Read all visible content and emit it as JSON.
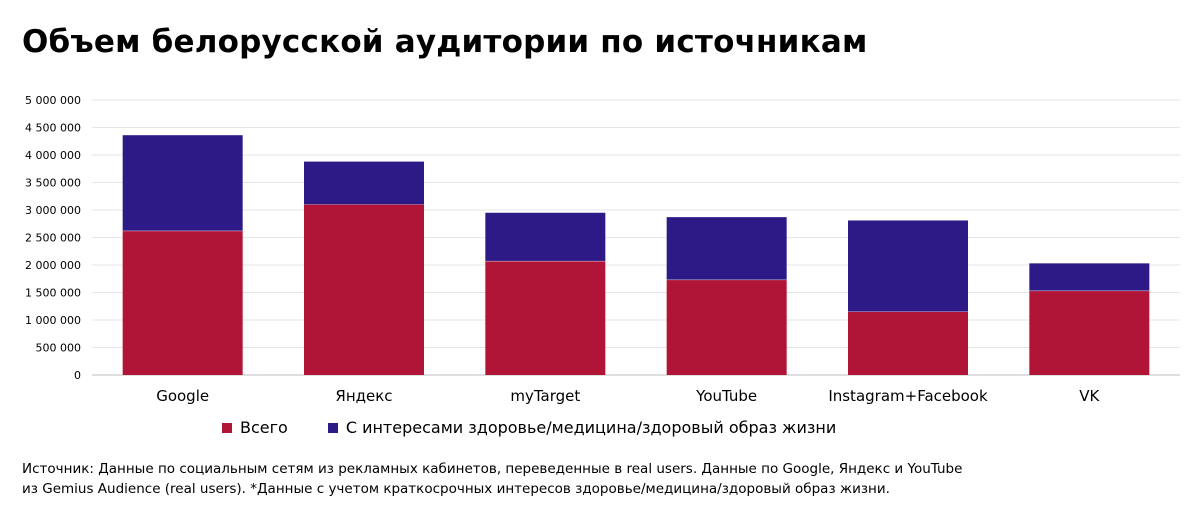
{
  "chart_data": {
    "type": "bar",
    "stacked": true,
    "title": "Объем белорусской аудитории по источникам",
    "categories": [
      "Google",
      "Яндекс",
      "myTarget",
      "YouTube",
      "Instagram+Facebook",
      "VK"
    ],
    "series": [
      {
        "name": "Всего",
        "color": "#b01437",
        "values": [
          2620000,
          3100000,
          2070000,
          1730000,
          1150000,
          1530000
        ]
      },
      {
        "name": "С интересами здоровье/медицина/здоровый образ жизни",
        "color": "#2e1a87",
        "values": [
          1740000,
          780000,
          880000,
          1140000,
          1660000,
          500000
        ]
      }
    ],
    "ylim": [
      0,
      5000000
    ],
    "yticks": [
      "0",
      "500 000",
      "1 000 000",
      "1 500 000",
      "2 000 000",
      "2 500 000",
      "3 000 000",
      "3 500 000",
      "4 000 000",
      "4 500 000",
      "5 000 000"
    ],
    "grid": true,
    "legend_position": "bottom",
    "xlabel": "",
    "ylabel": ""
  },
  "source": {
    "line1": "Источник: Данные по социальным сетям из рекламных кабинетов, переведенные в real users. Данные по Google, Яндекс и YouTube",
    "line2": "из Gemius Audience (real users). *Данные с учетом краткосрочных интересов здоровье/медицина/здоровый образ жизни."
  }
}
